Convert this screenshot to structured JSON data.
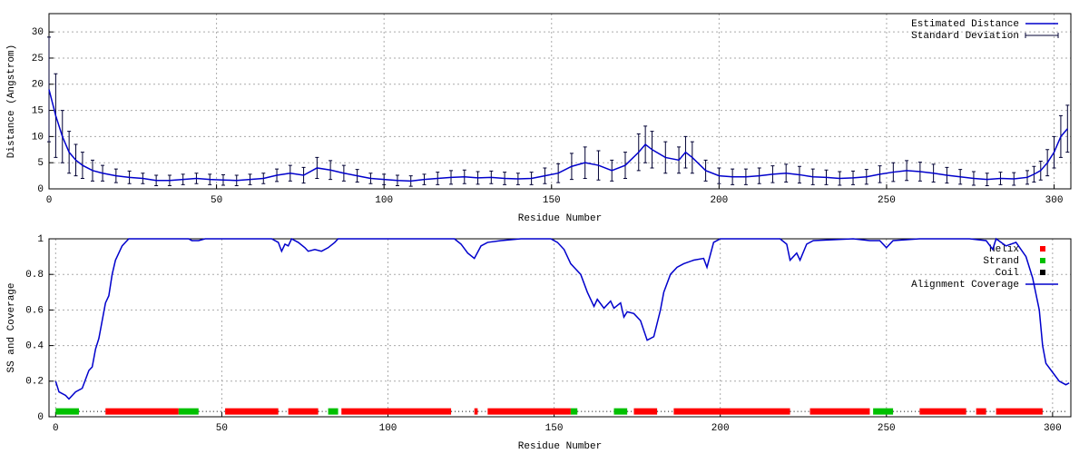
{
  "chart_data": [
    {
      "type": "line",
      "xlabel": "Residue Number",
      "ylabel": "Distance (Angstrom)",
      "xlim": [
        0,
        305
      ],
      "ylim": [
        0,
        33.5
      ],
      "xticks": [
        0,
        50,
        100,
        150,
        200,
        250,
        300
      ],
      "yticks": [
        0,
        5,
        10,
        15,
        20,
        25,
        30
      ],
      "grid": true,
      "legend": "top-right",
      "x": [
        0,
        2,
        4,
        6,
        8,
        10,
        13,
        16,
        20,
        24,
        28,
        32,
        36,
        40,
        44,
        48,
        52,
        56,
        60,
        64,
        68,
        72,
        76,
        80,
        84,
        88,
        92,
        96,
        100,
        104,
        108,
        112,
        116,
        120,
        124,
        128,
        132,
        136,
        140,
        144,
        148,
        152,
        156,
        160,
        164,
        168,
        172,
        176,
        178,
        180,
        184,
        188,
        190,
        192,
        196,
        200,
        204,
        208,
        212,
        216,
        220,
        224,
        228,
        232,
        236,
        240,
        244,
        248,
        252,
        256,
        260,
        264,
        268,
        272,
        276,
        280,
        284,
        288,
        292,
        294,
        296,
        298,
        300,
        302,
        304
      ],
      "series": [
        {
          "name": "Estimated Distance",
          "color": "#0000cc",
          "error_name": "Standard Deviation",
          "values": [
            19,
            14,
            10,
            7,
            5.5,
            4.5,
            3.5,
            3,
            2.5,
            2.2,
            2,
            1.6,
            1.6,
            1.8,
            2,
            1.8,
            1.7,
            1.6,
            1.8,
            2,
            2.6,
            3,
            2.6,
            4,
            3.6,
            3,
            2.5,
            2,
            1.8,
            1.6,
            1.5,
            1.8,
            2,
            2.2,
            2.3,
            2.1,
            2.2,
            2,
            1.9,
            2,
            2.5,
            3,
            4.3,
            5,
            4.5,
            3.5,
            4.5,
            7,
            8.5,
            7.5,
            6,
            5.5,
            7,
            6,
            3.5,
            2.5,
            2.3,
            2.3,
            2.5,
            2.8,
            3,
            2.7,
            2.3,
            2.2,
            2,
            2.1,
            2.3,
            2.8,
            3.2,
            3.5,
            3.3,
            3,
            2.6,
            2.3,
            2,
            1.8,
            2,
            1.9,
            2.2,
            2.8,
            3.5,
            5,
            7,
            10,
            11.5
          ],
          "errors": [
            10,
            8,
            5,
            4,
            3,
            2.5,
            2,
            1.5,
            1.3,
            1.2,
            1,
            1,
            1,
            1,
            1,
            1,
            1,
            1,
            1,
            1,
            1.2,
            1.5,
            1.5,
            2,
            1.8,
            1.5,
            1.2,
            1,
            1,
            1,
            1,
            1,
            1.2,
            1.3,
            1.3,
            1.2,
            1.2,
            1.2,
            1.1,
            1.2,
            1.5,
            1.8,
            2.5,
            3,
            2.8,
            2,
            2.5,
            3.5,
            3.5,
            3.5,
            3,
            2.5,
            3,
            3,
            2,
            1.5,
            1.5,
            1.5,
            1.5,
            1.6,
            1.7,
            1.6,
            1.5,
            1.4,
            1.3,
            1.3,
            1.4,
            1.6,
            1.8,
            1.9,
            1.8,
            1.7,
            1.5,
            1.4,
            1.3,
            1.2,
            1.2,
            1.2,
            1.3,
            1.5,
            1.8,
            2.5,
            3,
            4,
            4.5
          ]
        }
      ]
    },
    {
      "type": "line",
      "xlabel": "Residue Number",
      "ylabel": "SS and Coverage",
      "xlim": [
        -2,
        305.5
      ],
      "ylim": [
        0,
        1
      ],
      "xticks": [
        0,
        50,
        100,
        150,
        200,
        250,
        300
      ],
      "yticks": [
        0,
        0.2,
        0.4,
        0.6,
        0.8,
        1
      ],
      "grid": true,
      "legend": "top-right",
      "ss_level": 0.03,
      "ss": [
        {
          "name": "Helix",
          "color": "#ff0000",
          "segments": [
            [
              15,
              37
            ],
            [
              51,
              67
            ],
            [
              70,
              79
            ],
            [
              86,
              119
            ],
            [
              126,
              127
            ],
            [
              130,
              155
            ],
            [
              174,
              181
            ],
            [
              186,
              221
            ],
            [
              227,
              245
            ],
            [
              260,
              274
            ],
            [
              277,
              280
            ],
            [
              283,
              297
            ]
          ]
        },
        {
          "name": "Strand",
          "color": "#00c000",
          "segments": [
            [
              0,
              7
            ],
            [
              37,
              43
            ],
            [
              82,
              85
            ],
            [
              155,
              157
            ],
            [
              168,
              172
            ],
            [
              246,
              252
            ]
          ]
        },
        {
          "name": "Coil",
          "color": "#000000",
          "segments": [
            [
              7,
              15
            ],
            [
              43,
              51
            ],
            [
              67,
              70
            ],
            [
              79,
              82
            ],
            [
              119,
              126
            ],
            [
              127,
              130
            ],
            [
              157,
              168
            ],
            [
              172,
              174
            ],
            [
              181,
              186
            ],
            [
              221,
              227
            ],
            [
              252,
              260
            ],
            [
              274,
              277
            ],
            [
              280,
              283
            ],
            [
              297,
              304
            ]
          ]
        }
      ],
      "x": [
        0,
        1,
        3,
        4,
        6,
        8,
        10,
        11,
        12,
        13,
        15,
        16,
        17,
        18,
        19,
        20,
        21,
        22,
        40,
        41,
        43,
        45,
        65,
        67,
        68,
        69,
        70,
        71,
        73,
        75,
        76,
        78,
        80,
        82,
        84,
        85,
        95,
        120,
        122,
        124,
        126,
        128,
        130,
        134,
        140,
        149,
        151,
        153,
        155,
        158,
        160,
        162,
        163,
        165,
        167,
        168,
        170,
        171,
        172,
        174,
        176,
        178,
        180,
        182,
        183,
        185,
        187,
        189,
        192,
        195,
        196,
        198,
        200,
        218,
        220,
        221,
        223,
        224,
        226,
        228,
        240,
        245,
        248,
        250,
        252,
        260,
        275,
        280,
        282,
        283,
        286,
        289,
        292,
        294,
        296,
        297,
        298,
        300,
        302,
        304,
        305
      ],
      "series": [
        {
          "name": "Alignment Coverage",
          "color": "#0000cc",
          "values": [
            0.2,
            0.14,
            0.12,
            0.1,
            0.14,
            0.16,
            0.26,
            0.28,
            0.38,
            0.44,
            0.64,
            0.68,
            0.8,
            0.88,
            0.92,
            0.96,
            0.98,
            1,
            1,
            0.99,
            0.99,
            1,
            1,
            0.98,
            0.93,
            0.97,
            0.96,
            1,
            0.98,
            0.95,
            0.93,
            0.94,
            0.93,
            0.95,
            0.98,
            1,
            1,
            1,
            0.97,
            0.92,
            0.89,
            0.96,
            0.98,
            0.99,
            1,
            1,
            0.98,
            0.94,
            0.86,
            0.8,
            0.7,
            0.62,
            0.66,
            0.61,
            0.65,
            0.61,
            0.64,
            0.56,
            0.59,
            0.58,
            0.54,
            0.43,
            0.45,
            0.6,
            0.7,
            0.8,
            0.84,
            0.86,
            0.88,
            0.89,
            0.84,
            0.98,
            1,
            1,
            0.97,
            0.88,
            0.92,
            0.88,
            0.97,
            0.99,
            1,
            0.99,
            0.99,
            0.95,
            0.99,
            1,
            1,
            0.99,
            0.94,
            1,
            0.96,
            0.98,
            0.9,
            0.78,
            0.6,
            0.4,
            0.3,
            0.25,
            0.2,
            0.18,
            0.19
          ]
        }
      ]
    }
  ]
}
